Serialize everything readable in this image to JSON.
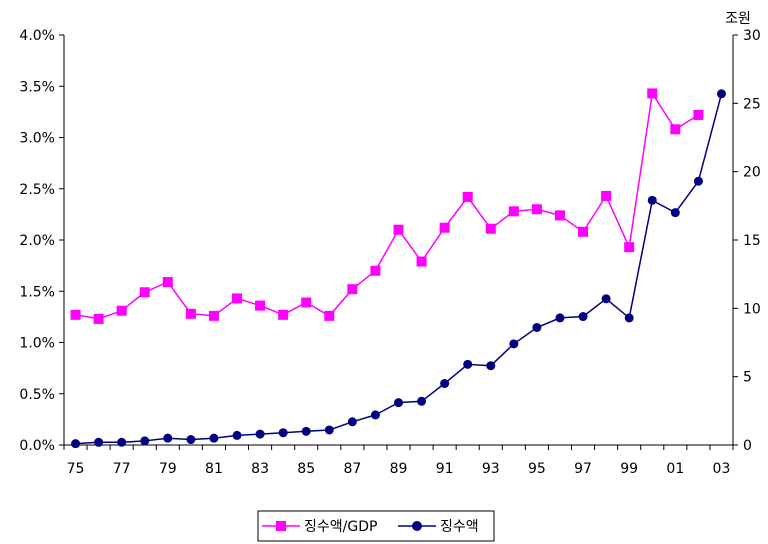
{
  "chart_data": {
    "type": "line",
    "title": "",
    "x_tick_labels": [
      "75",
      "77",
      "79",
      "81",
      "83",
      "85",
      "87",
      "89",
      "91",
      "93",
      "95",
      "97",
      "99",
      "01",
      "03"
    ],
    "x": [
      "75",
      "76",
      "77",
      "78",
      "79",
      "80",
      "81",
      "82",
      "83",
      "84",
      "85",
      "86",
      "87",
      "88",
      "89",
      "90",
      "91",
      "92",
      "93",
      "94",
      "95",
      "96",
      "97",
      "98",
      "99",
      "00",
      "01",
      "02",
      "03"
    ],
    "left_axis": {
      "ylim": [
        0,
        0.04
      ],
      "tick_labels": [
        "0.0%",
        "0.5%",
        "1.0%",
        "1.5%",
        "2.0%",
        "2.5%",
        "3.0%",
        "3.5%",
        "4.0%"
      ]
    },
    "right_axis": {
      "unit_label": "조원",
      "ylim": [
        0,
        30
      ],
      "tick_labels": [
        "0",
        "5",
        "10",
        "15",
        "20",
        "25",
        "30"
      ]
    },
    "series": [
      {
        "name": "징수액/GDP",
        "axis": "left",
        "color": "#ff00ff",
        "marker": "square",
        "values": [
          0.0127,
          0.0123,
          0.0131,
          0.0149,
          0.0159,
          0.0128,
          0.0126,
          0.0143,
          0.0136,
          0.0127,
          0.0139,
          0.0126,
          0.0152,
          0.017,
          0.021,
          0.0179,
          0.0212,
          0.0242,
          0.0211,
          0.0228,
          0.023,
          0.0224,
          0.0208,
          0.0243,
          0.0193,
          0.0343,
          0.0308,
          0.0322,
          null
        ]
      },
      {
        "name": "징수액",
        "axis": "right",
        "color": "#000080",
        "marker": "circle",
        "values": [
          0.1,
          0.2,
          0.2,
          0.3,
          0.5,
          0.4,
          0.5,
          0.7,
          0.8,
          0.9,
          1.0,
          1.1,
          1.7,
          2.2,
          3.1,
          3.2,
          4.5,
          5.9,
          5.8,
          7.4,
          8.6,
          9.3,
          9.4,
          10.7,
          9.3,
          17.9,
          17.0,
          19.3,
          25.7
        ]
      }
    ],
    "grid": false,
    "legend_position": "bottom-center"
  }
}
